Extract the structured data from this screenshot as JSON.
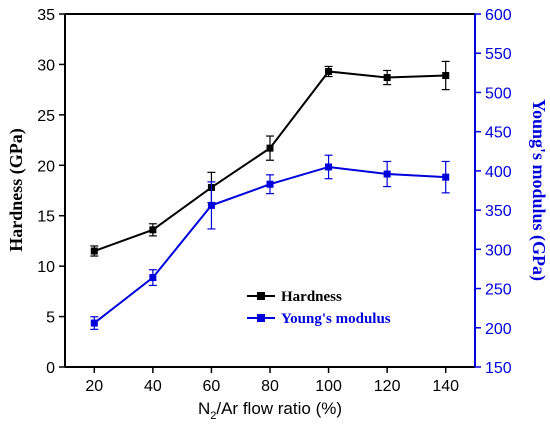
{
  "chart_data": {
    "type": "line",
    "xlabel": {
      "main": "N",
      "sub": "2",
      "rest": "/Ar flow ratio (%)"
    },
    "ylabel_left": "Hardness (GPa)",
    "ylabel_right": "Young's modulus (GPa)",
    "x": [
      20,
      40,
      60,
      80,
      100,
      120,
      140
    ],
    "xlim": [
      10,
      150
    ],
    "ylim_left": [
      0,
      35
    ],
    "ylim_right": [
      150,
      600
    ],
    "x_ticks": [
      20,
      40,
      60,
      80,
      100,
      120,
      140
    ],
    "y_left_ticks": [
      0,
      5,
      10,
      15,
      20,
      25,
      30,
      35
    ],
    "y_right_ticks": [
      150,
      200,
      250,
      300,
      350,
      400,
      450,
      500,
      550,
      600
    ],
    "grid": false,
    "legend_position": "lower-center",
    "colors": {
      "hardness": "#000000",
      "modulus": "#0000dd",
      "right_axis": "#0000dd"
    },
    "series": [
      {
        "name": "Hardness",
        "axis": "left",
        "values": [
          11.5,
          13.6,
          17.8,
          21.7,
          29.3,
          28.7,
          28.9
        ],
        "errors": [
          0.5,
          0.6,
          1.5,
          1.2,
          0.5,
          0.7,
          1.4
        ]
      },
      {
        "name": "Young's modulus",
        "axis": "right",
        "values": [
          206,
          264,
          356,
          383,
          405,
          396,
          392
        ],
        "errors": [
          8,
          10,
          30,
          12,
          15,
          16,
          20
        ]
      }
    ]
  }
}
